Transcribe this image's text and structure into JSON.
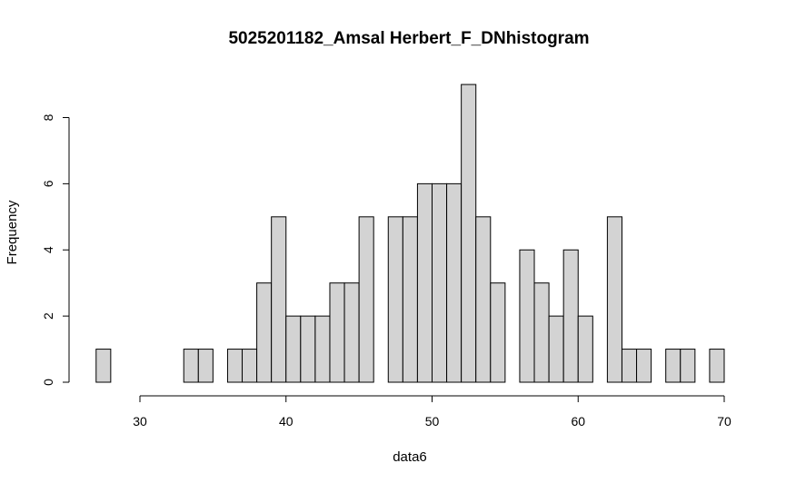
{
  "chart_data": {
    "type": "histogram",
    "title": "5025201182_Amsal Herbert_F_DNhistogram",
    "xlabel": "data6",
    "ylabel": "Frequency",
    "xlim": [
      27,
      70
    ],
    "ylim": [
      0,
      9
    ],
    "bin_width": 1,
    "bin_edges_start": 27,
    "counts": [
      1,
      0,
      0,
      0,
      0,
      0,
      1,
      1,
      0,
      1,
      1,
      3,
      5,
      2,
      2,
      2,
      3,
      3,
      5,
      0,
      5,
      5,
      6,
      6,
      6,
      9,
      5,
      3,
      0,
      4,
      3,
      2,
      4,
      2,
      0,
      5,
      1,
      1,
      0,
      1,
      1,
      0,
      1
    ],
    "x_ticks": [
      30,
      40,
      50,
      60,
      70
    ],
    "y_ticks": [
      0,
      2,
      4,
      6,
      8
    ],
    "bar_color": "#d3d3d3",
    "grid": false
  }
}
